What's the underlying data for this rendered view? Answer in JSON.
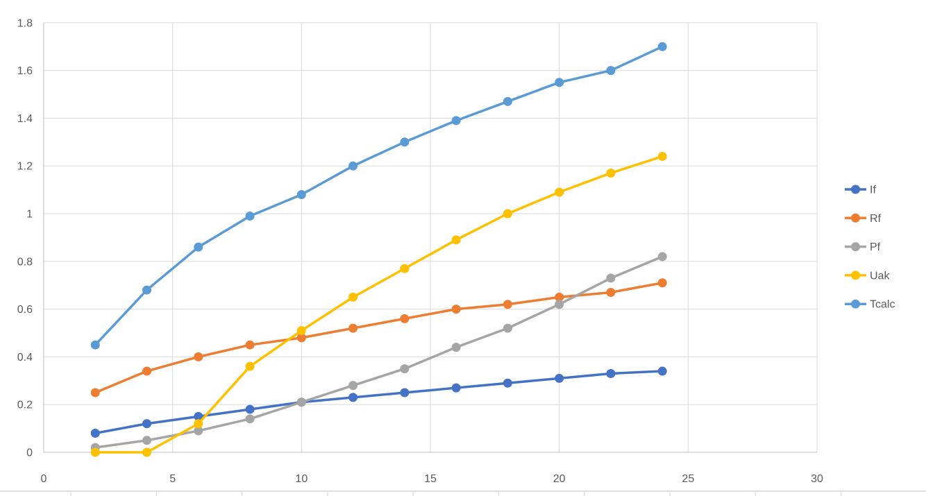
{
  "chart_data": {
    "type": "line",
    "title": "",
    "xlabel": "",
    "ylabel": "",
    "xlim": [
      0,
      30
    ],
    "ylim": [
      0,
      1.8
    ],
    "grid": true,
    "legend_position": "right",
    "x_ticks": [
      0,
      5,
      10,
      15,
      20,
      25,
      30
    ],
    "x_tick_labels": [
      "0",
      "5",
      "10",
      "15",
      "20",
      "25",
      "30"
    ],
    "y_ticks": [
      0,
      0.2,
      0.4,
      0.6,
      0.8,
      1.0,
      1.2,
      1.4,
      1.6,
      1.8
    ],
    "y_tick_labels": [
      "0",
      "0.2",
      "0.4",
      "0.6",
      "0.8",
      "1",
      "1.2",
      "1.4",
      "1.6",
      "1.8"
    ],
    "x": [
      2,
      4,
      6,
      8,
      10,
      12,
      14,
      16,
      18,
      20,
      22,
      24
    ],
    "series": [
      {
        "name": "If",
        "color": "#4472C4",
        "marker": "circle",
        "values": [
          0.08,
          0.12,
          0.15,
          0.18,
          0.21,
          0.23,
          0.25,
          0.27,
          0.29,
          0.31,
          0.33,
          0.34
        ]
      },
      {
        "name": "Rf",
        "color": "#ED7D31",
        "marker": "circle",
        "values": [
          0.25,
          0.34,
          0.4,
          0.45,
          0.48,
          0.52,
          0.56,
          0.6,
          0.62,
          0.65,
          0.67,
          0.71
        ]
      },
      {
        "name": "Pf",
        "color": "#A5A5A5",
        "marker": "circle",
        "values": [
          0.02,
          0.05,
          0.09,
          0.14,
          0.21,
          0.28,
          0.35,
          0.44,
          0.52,
          0.62,
          0.73,
          0.82
        ]
      },
      {
        "name": "Uak",
        "color": "#FFC000",
        "marker": "circle",
        "values": [
          0.0,
          0.0,
          0.12,
          0.36,
          0.51,
          0.65,
          0.77,
          0.89,
          1.0,
          1.09,
          1.17,
          1.24
        ]
      },
      {
        "name": "Tcalc",
        "color": "#5B9BD5",
        "marker": "circle",
        "values": [
          0.45,
          0.68,
          0.86,
          0.99,
          1.08,
          1.2,
          1.3,
          1.39,
          1.47,
          1.55,
          1.6,
          1.7
        ]
      }
    ],
    "legend": [
      "If",
      "Rf",
      "Pf",
      "Uak",
      "Tcalc"
    ]
  },
  "style_colors": {
    "gridline": "#D9D9D9",
    "axis_line": "#BFBFBF",
    "tick_text": "#595959",
    "legend_text": "#595959",
    "background": "#FFFFFF",
    "sheet_divider": "#D9D9D9"
  }
}
